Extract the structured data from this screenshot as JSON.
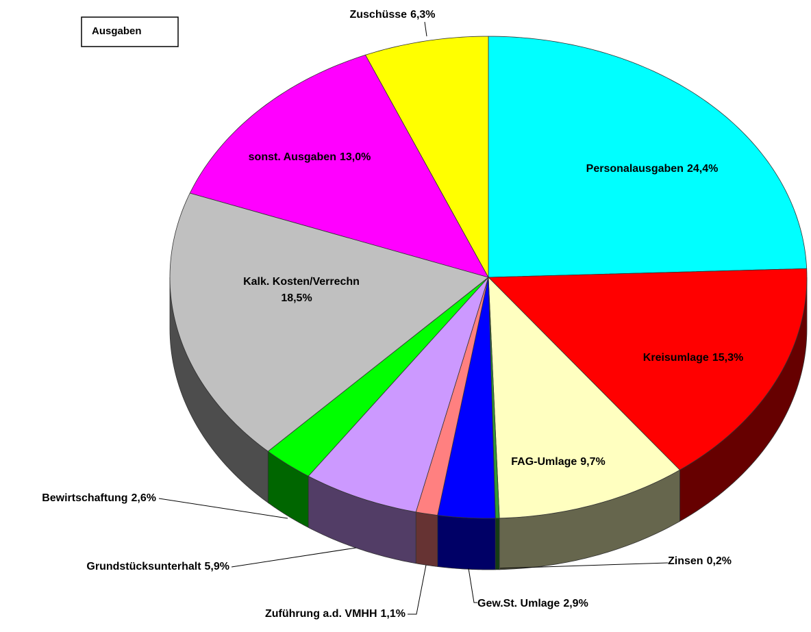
{
  "chart_data": {
    "type": "pie",
    "title": "Ausgaben",
    "categories": [
      "Personalausgaben",
      "Kreisumlage",
      "FAG-Umlage",
      "Zinsen",
      "Gew.St. Umlage",
      "Zuführung a.d. VMHH",
      "Grundstücksunterhalt",
      "Bewirtschaftung",
      "Kalk. Kosten/Verrechn",
      "sonst. Ausgaben",
      "Zuschüsse"
    ],
    "values": [
      24.4,
      15.3,
      9.7,
      0.2,
      2.9,
      1.1,
      5.9,
      2.6,
      18.5,
      13.0,
      6.3
    ],
    "value_labels": [
      "24,4%",
      "15,3%",
      "9,7%",
      "0,2%",
      "2,9%",
      "1,1%",
      "5,9%",
      "2,6%",
      "18,5%",
      "13,0%",
      "6,3%"
    ],
    "colors": [
      "#00ffff",
      "#ff0000",
      "#ffffc0",
      "#339933",
      "#0000ff",
      "#ff8080",
      "#cc99ff",
      "#00ff00",
      "#c0c0c0",
      "#ff00ff",
      "#ffff00"
    ]
  }
}
